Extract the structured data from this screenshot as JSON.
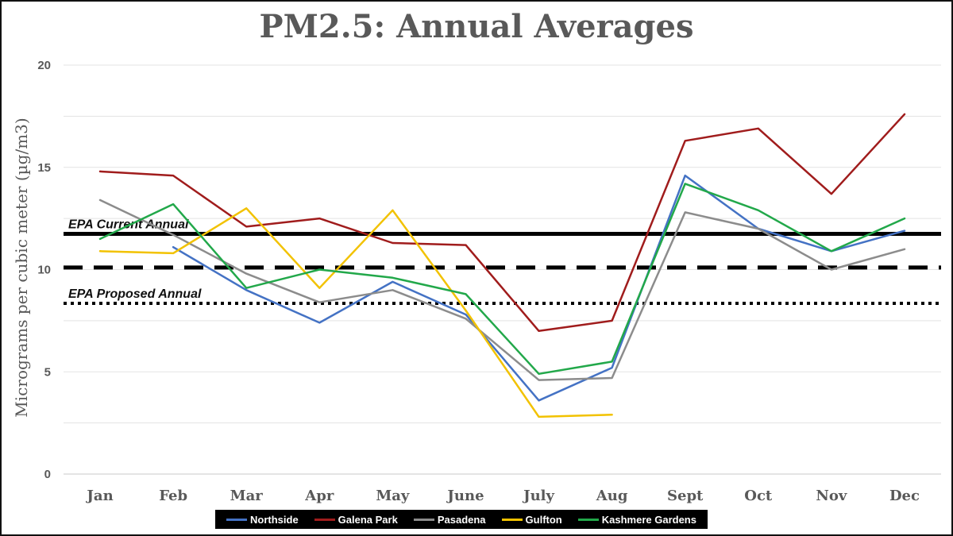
{
  "chart_data": {
    "type": "line",
    "title": "PM2.5: Annual Averages",
    "xlabel": "",
    "ylabel": "Micrograms per cubic meter (µg/m3)",
    "ylim": [
      0,
      20
    ],
    "yticks": [
      0,
      5,
      10,
      15,
      20
    ],
    "categories": [
      "Jan",
      "Feb",
      "Mar",
      "Apr",
      "May",
      "June",
      "July",
      "Aug",
      "Sept",
      "Oct",
      "Nov",
      "Dec"
    ],
    "series": [
      {
        "name": "Northside",
        "color": "#4472C4",
        "values": [
          null,
          11.1,
          9.0,
          7.4,
          9.4,
          7.8,
          3.6,
          5.2,
          14.6,
          12.0,
          10.9,
          11.9
        ]
      },
      {
        "name": "Galena Park",
        "color": "#A01C1C",
        "values": [
          14.8,
          14.6,
          12.1,
          12.5,
          11.3,
          11.2,
          7.0,
          7.5,
          16.3,
          16.9,
          13.7,
          17.6
        ]
      },
      {
        "name": "Pasadena",
        "color": "#8C8C8C",
        "values": [
          13.4,
          11.7,
          9.8,
          8.4,
          9.0,
          7.6,
          4.6,
          4.7,
          12.8,
          12.0,
          10.0,
          11.0
        ]
      },
      {
        "name": "Gulfton",
        "color": "#F2C200",
        "values": [
          10.9,
          10.8,
          13.0,
          9.1,
          12.9,
          8.0,
          2.8,
          2.9,
          null,
          null,
          null,
          null
        ]
      },
      {
        "name": "Kashmere Gardens",
        "color": "#22A84A",
        "values": [
          11.5,
          13.2,
          9.1,
          10.0,
          9.6,
          8.8,
          4.9,
          5.5,
          14.2,
          12.9,
          10.9,
          12.5
        ]
      }
    ],
    "reference_lines": [
      {
        "name": "EPA Current Annual",
        "label": "EPA Current Annual",
        "value": 11.75,
        "style": "solid"
      },
      {
        "name": "dashed reference",
        "label": "",
        "value": 10.1,
        "style": "dashed"
      },
      {
        "name": "EPA Proposed Annual",
        "label": "EPA Proposed Annual",
        "value": 8.35,
        "style": "dotted"
      }
    ],
    "grid": true,
    "legend_position": "bottom"
  }
}
